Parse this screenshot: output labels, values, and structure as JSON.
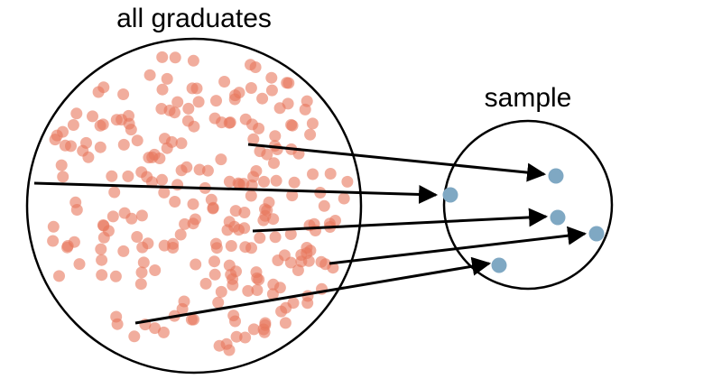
{
  "labels": {
    "population": "all graduates",
    "sample": "sample"
  },
  "colors": {
    "population_dot": "#e8775c",
    "sample_dot": "#7fa8c3",
    "outline": "#000000",
    "arrow": "#000000"
  },
  "sample_size": 5
}
